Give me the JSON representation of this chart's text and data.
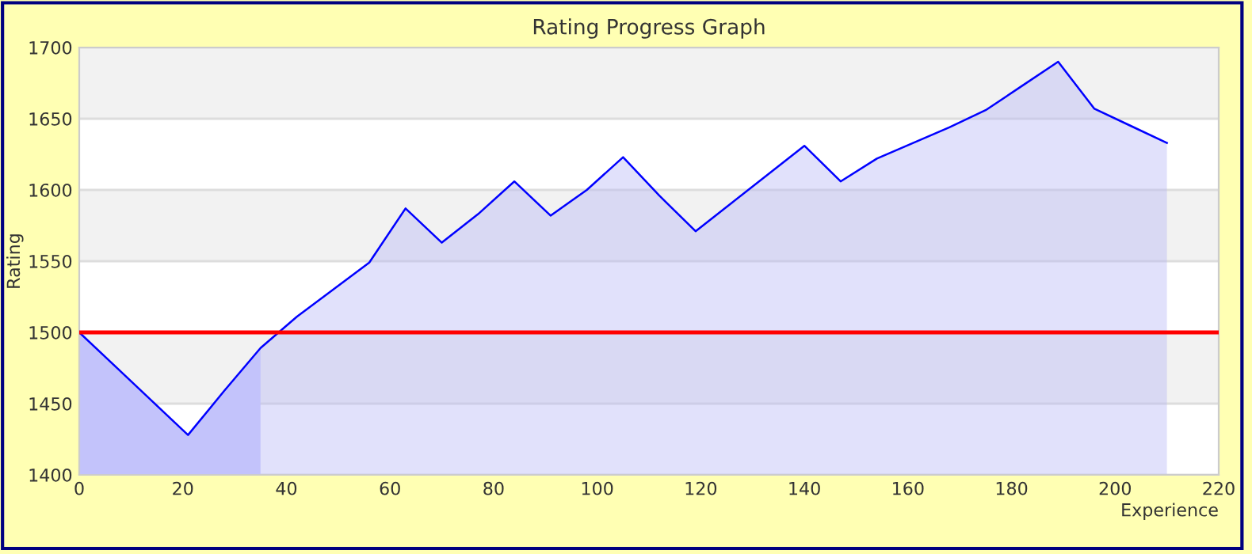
{
  "chart_data": {
    "type": "area",
    "title": "Rating Progress Graph",
    "xlabel": "Experience",
    "ylabel": "Rating",
    "x": [
      0,
      7,
      14,
      21,
      28,
      35,
      42,
      49,
      56,
      63,
      70,
      77,
      84,
      91,
      98,
      105,
      112,
      119,
      126,
      133,
      140,
      147,
      154,
      161,
      168,
      175,
      182,
      189,
      196,
      203,
      210
    ],
    "series": [
      {
        "color": "#0000ff",
        "values": [
          1500,
          1476,
          1452,
          1428,
          1459,
          1489,
          1511,
          1530,
          1549,
          1587,
          1563,
          1583,
          1606,
          1582,
          1600,
          1623,
          1596,
          1571,
          1591,
          1611,
          1631,
          1606,
          1622,
          1633,
          1644,
          1656,
          1673,
          1690,
          1657,
          1645,
          1633
        ]
      }
    ],
    "xlim": [
      0,
      220
    ],
    "xticks": [
      0,
      20,
      40,
      60,
      80,
      100,
      120,
      140,
      160,
      180,
      200,
      220
    ],
    "ylim": [
      1400,
      1700
    ],
    "yticks": [
      1400,
      1450,
      1500,
      1550,
      1600,
      1650,
      1700
    ],
    "grid": "y",
    "ref_lines": [
      {
        "axis": "y",
        "value": 1500,
        "color": "#ff0000"
      }
    ],
    "bands": [
      {
        "axis": "x",
        "from": 0,
        "to": 35,
        "color": "#ccccff"
      }
    ]
  }
}
